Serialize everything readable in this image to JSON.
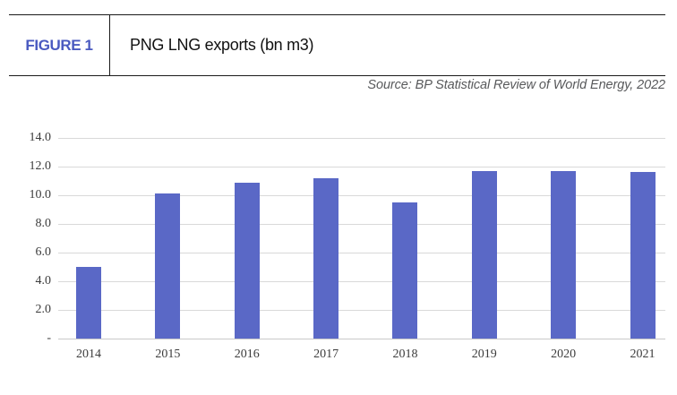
{
  "figure": {
    "label": "FIGURE 1",
    "title": "PNG LNG exports (bn m3)",
    "source": "Source: BP Statistical Review of World Energy, 2022"
  },
  "chart_data": {
    "type": "bar",
    "title": "PNG LNG exports (bn m3)",
    "categories": [
      "2014",
      "2015",
      "2016",
      "2017",
      "2018",
      "2019",
      "2020",
      "2021"
    ],
    "values": [
      5.0,
      10.1,
      10.9,
      11.2,
      9.5,
      11.7,
      11.7,
      11.6
    ],
    "xlabel": "",
    "ylabel": "",
    "ylim": [
      0,
      14
    ],
    "ytick_step": 2,
    "ytick_labels_bottom_to_top": [
      "-",
      "2.0",
      "4.0",
      "6.0",
      "8.0",
      "10.0",
      "12.0",
      "14.0"
    ],
    "grid": true,
    "legend": "none",
    "bar_color": "#5a68c6"
  },
  "colors": {
    "figure_label": "#4a5ac0",
    "title_text": "#111111",
    "source_text": "#58595b",
    "header_rule": "#1a1a1a",
    "gridline": "#d9d9d9",
    "axis_line": "#c9c9c9",
    "tick_text": "#3c3c3c",
    "background": "#ffffff"
  }
}
